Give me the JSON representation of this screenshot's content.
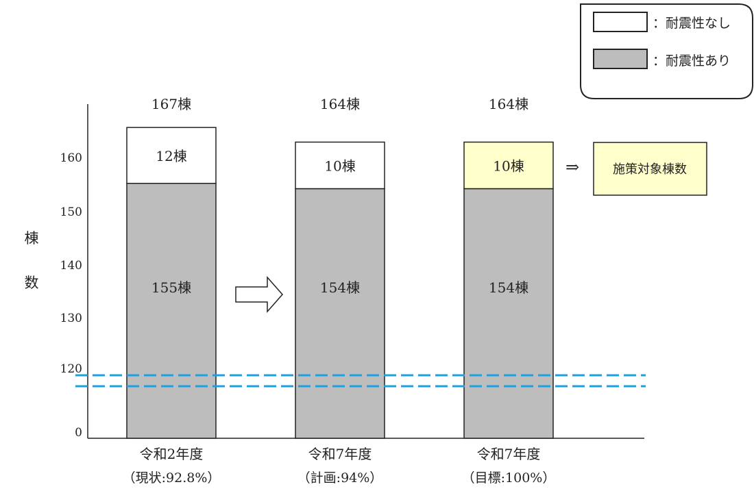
{
  "legend": {
    "items": [
      {
        "label": "：耐震性なし",
        "color": "#ffffff"
      },
      {
        "label": "：耐震性あり",
        "color": "#bdbdbd"
      }
    ]
  },
  "chart_data": {
    "type": "bar",
    "stacked": true,
    "axis_break": true,
    "ylabel": "棟数",
    "yticks": [
      0,
      120,
      130,
      140,
      150,
      160
    ],
    "ylim": [
      110,
      165
    ],
    "categories": [
      {
        "label": "令和2年度",
        "sublabel": "（現状:92.8%）"
      },
      {
        "label": "令和7年度",
        "sublabel": "（計画:94%）"
      },
      {
        "label": "令和7年度",
        "sublabel": "（目標:100%）"
      }
    ],
    "totals": [
      "167棟",
      "164棟",
      "164棟"
    ],
    "series": [
      {
        "name": "耐震性あり",
        "values": [
          155,
          154,
          154
        ],
        "labels": [
          "155棟",
          "154棟",
          "154棟"
        ],
        "color": "#bdbdbd"
      },
      {
        "name": "耐震性なし",
        "values": [
          12,
          10,
          10
        ],
        "labels": [
          "12棟",
          "10棟",
          "10棟"
        ],
        "color": "#ffffff",
        "highlight_color": "#ffffcc"
      }
    ],
    "annotations": {
      "arrow_symbol": "⇒",
      "target_label": "施策対象棟数",
      "break_line_color": "#1ba1e2"
    }
  }
}
